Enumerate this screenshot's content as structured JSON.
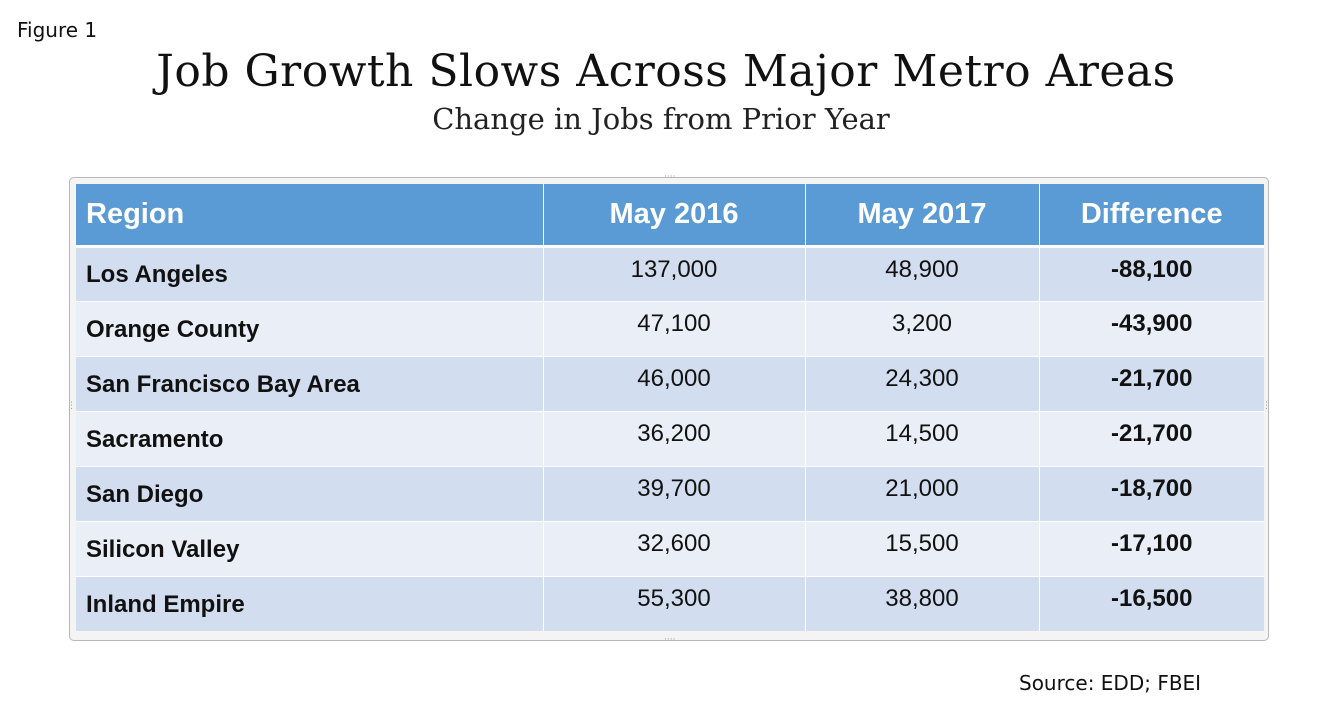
{
  "figure_label": "Figure 1",
  "source": "Source: EDD; FBEI",
  "chart_data": {
    "type": "table",
    "title": "Job Growth Slows Across Major Metro Areas",
    "subtitle": "Change in Jobs from Prior Year",
    "columns": [
      "Region",
      "May 2016",
      "May 2017",
      "Difference"
    ],
    "rows": [
      [
        "Los Angeles",
        "137,000",
        "48,900",
        "-88,100"
      ],
      [
        "Orange County",
        "47,100",
        "3,200",
        "-43,900"
      ],
      [
        "San Francisco Bay Area",
        "46,000",
        "24,300",
        "-21,700"
      ],
      [
        "Sacramento",
        "36,200",
        "14,500",
        "-21,700"
      ],
      [
        "San Diego",
        "39,700",
        "21,000",
        "-18,700"
      ],
      [
        "Silicon Valley",
        "32,600",
        "15,500",
        "-17,100"
      ],
      [
        "Inland Empire",
        "55,300",
        "38,800",
        "-16,500"
      ]
    ]
  },
  "colors": {
    "header_bg": "#5b9bd5",
    "row_odd": "#d2deef",
    "row_even": "#eaeff7"
  }
}
